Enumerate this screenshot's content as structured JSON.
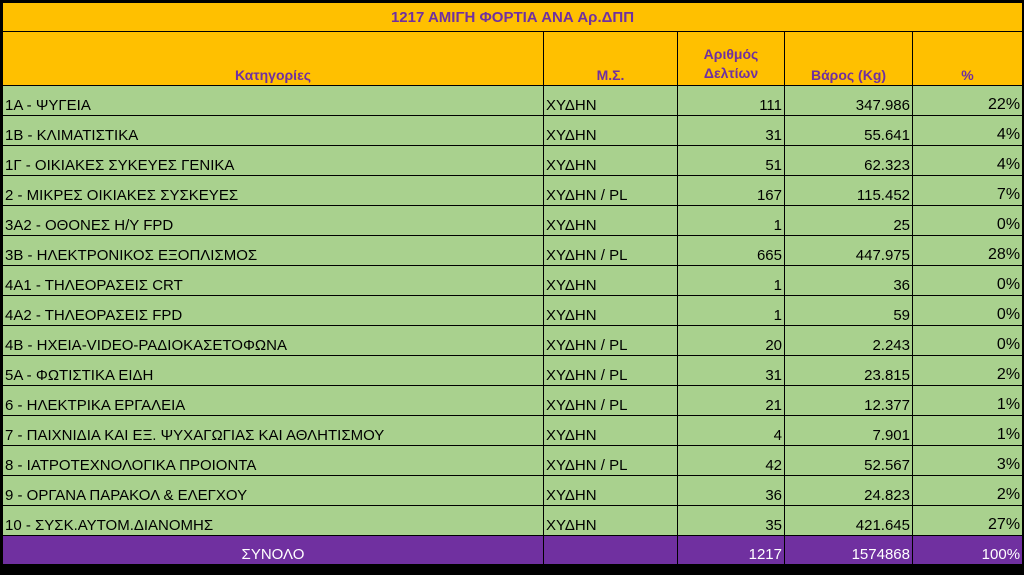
{
  "title": "1217 ΑΜΙΓΗ ΦΟΡΤΙΑ ΑΝΑ Αρ.ΔΠΠ",
  "headers": {
    "category": "Κατηγορίες",
    "ms": "Μ.Σ.",
    "count_line1": "Αριθμός",
    "count_line2": "Δελτίων",
    "weight": "Βάρος (Kg)",
    "percent": "%"
  },
  "rows": [
    {
      "category": "1Α - ΨΥΓΕΙΑ",
      "ms": "ΧΥΔΗΝ",
      "count": "111",
      "weight": "347.986",
      "percent": "22%"
    },
    {
      "category": "1Β - ΚΛΙΜΑΤΙΣΤΙΚΑ",
      "ms": "ΧΥΔΗΝ",
      "count": "31",
      "weight": "55.641",
      "percent": "4%"
    },
    {
      "category": "1Γ - ΟΙΚΙΑΚΕΣ ΣΥΚΕΥΕΣ ΓΕΝΙΚΑ",
      "ms": "ΧΥΔΗΝ",
      "count": "51",
      "weight": "62.323",
      "percent": "4%"
    },
    {
      "category": "2 - ΜΙΚΡΕΣ ΟΙΚΙΑΚΕΣ ΣΥΣΚΕΥΕΣ",
      "ms": "ΧΥΔΗΝ / PL",
      "count": "167",
      "weight": "115.452",
      "percent": "7%"
    },
    {
      "category": "3Α2 - ΟΘΟΝΕΣ Η/Υ FPD",
      "ms": "ΧΥΔΗΝ",
      "count": "1",
      "weight": "25",
      "percent": "0%"
    },
    {
      "category": "3Β - ΗΛΕΚΤΡΟΝΙΚΟΣ ΕΞΟΠΛΙΣΜΟΣ",
      "ms": "ΧΥΔΗΝ / PL",
      "count": "665",
      "weight": "447.975",
      "percent": "28%"
    },
    {
      "category": "4Α1 - ΤΗΛΕΟΡΑΣΕΙΣ CRT",
      "ms": "ΧΥΔΗΝ",
      "count": "1",
      "weight": "36",
      "percent": "0%"
    },
    {
      "category": "4Α2 - ΤΗΛΕΟΡΑΣΕΙΣ FPD",
      "ms": "ΧΥΔΗΝ",
      "count": "1",
      "weight": "59",
      "percent": "0%"
    },
    {
      "category": "4Β - ΗΧΕΙΑ-VIDEO-ΡΑΔΙΟΚΑΣΕΤΟΦΩΝΑ",
      "ms": "ΧΥΔΗΝ / PL",
      "count": "20",
      "weight": "2.243",
      "percent": "0%"
    },
    {
      "category": "5Α - ΦΩΤΙΣΤΙΚΑ ΕΙΔΗ",
      "ms": "ΧΥΔΗΝ / PL",
      "count": "31",
      "weight": "23.815",
      "percent": "2%"
    },
    {
      "category": "6 - ΗΛΕΚΤΡΙΚΑ ΕΡΓΑΛΕΙΑ",
      "ms": "ΧΥΔΗΝ / PL",
      "count": "21",
      "weight": "12.377",
      "percent": "1%"
    },
    {
      "category": "7 - ΠΑΙΧΝΙΔΙΑ ΚΑΙ ΕΞ. ΨΥΧΑΓΩΓΙΑΣ ΚΑΙ ΑΘΛΗΤΙΣΜΟΥ",
      "ms": "ΧΥΔΗΝ",
      "count": "4",
      "weight": "7.901",
      "percent": "1%"
    },
    {
      "category": "8 - ΙΑΤΡΟΤΕΧΝΟΛΟΓΙΚΑ ΠΡΟΙΟΝΤΑ",
      "ms": "ΧΥΔΗΝ / PL",
      "count": "42",
      "weight": "52.567",
      "percent": "3%"
    },
    {
      "category": "9 - ΟΡΓΑΝΑ ΠΑΡΑΚΟΛ & ΕΛΕΓΧΟΥ",
      "ms": "ΧΥΔΗΝ",
      "count": "36",
      "weight": "24.823",
      "percent": "2%"
    },
    {
      "category": "10 - ΣΥΣΚ.ΑΥΤΟΜ.ΔΙΑΝΟΜΗΣ",
      "ms": "ΧΥΔΗΝ",
      "count": "35",
      "weight": "421.645",
      "percent": "27%"
    }
  ],
  "total": {
    "label": "ΣΥΝΟΛΟ",
    "ms": "",
    "count": "1217",
    "weight": "1574868",
    "percent": "100%"
  },
  "colors": {
    "header_bg": "#FFC000",
    "header_text": "#7030A0",
    "row_bg": "#A9D18E",
    "total_bg": "#7030A0",
    "total_text": "#FFFFFF"
  }
}
